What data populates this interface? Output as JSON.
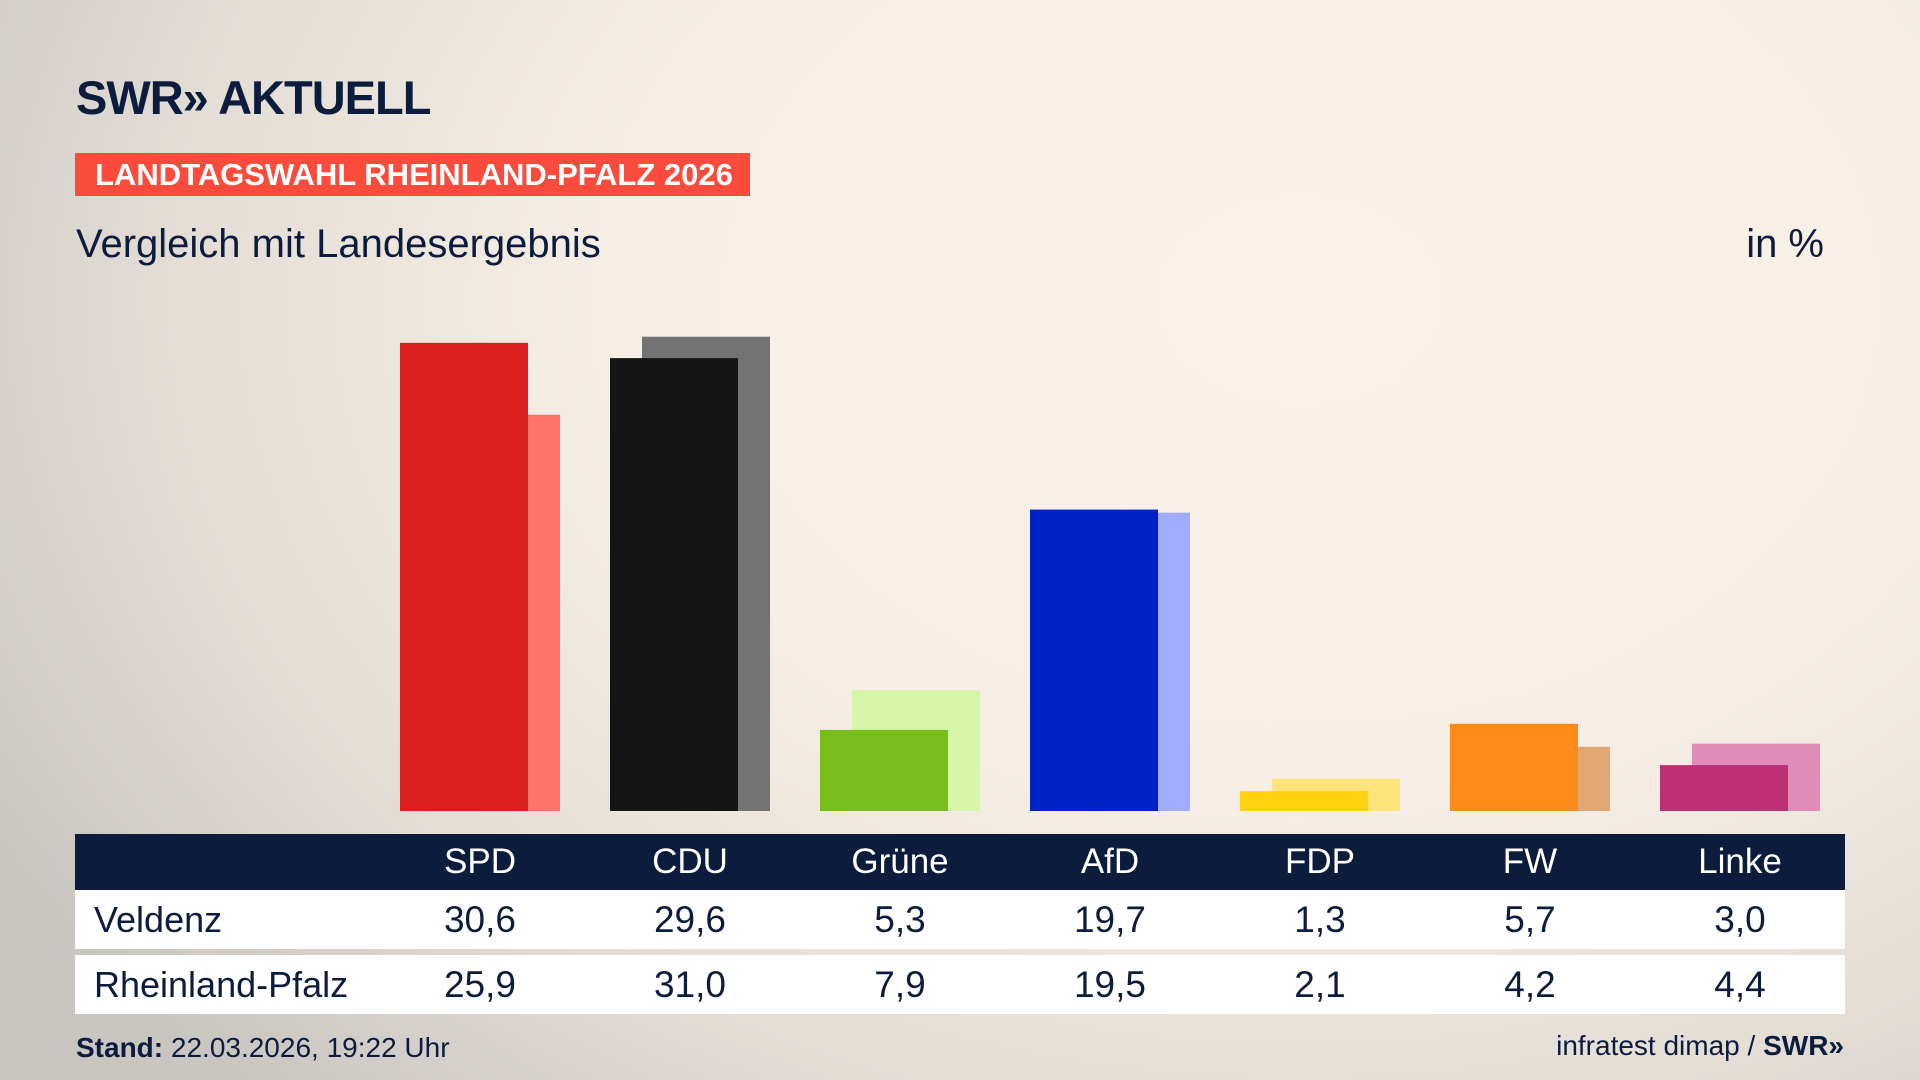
{
  "header": {
    "logo": "SWR» AKTUELL",
    "banner": "LANDTAGSWAHL RHEINLAND-PFALZ 2026",
    "subtitle": "Vergleich mit Landesergebnis",
    "unit": "in %"
  },
  "chart_data": {
    "type": "bar",
    "categories": [
      "SPD",
      "CDU",
      "Grüne",
      "AfD",
      "FDP",
      "FW",
      "Linke"
    ],
    "series": [
      {
        "name": "Veldenz",
        "values": [
          30.6,
          29.6,
          5.3,
          19.7,
          1.3,
          5.7,
          3.0
        ],
        "display": [
          "30,6",
          "29,6",
          "5,3",
          "19,7",
          "1,3",
          "5,7",
          "3,0"
        ]
      },
      {
        "name": "Rheinland-Pfalz",
        "values": [
          25.9,
          31.0,
          7.9,
          19.5,
          2.1,
          4.2,
          4.4
        ],
        "display": [
          "25,9",
          "31,0",
          "7,9",
          "19,5",
          "2,1",
          "4,2",
          "4,4"
        ]
      }
    ],
    "colors_dark": [
      "#d91f1f",
      "#141414",
      "#78be1a",
      "#0022c8",
      "#ffd10f",
      "#ff8c1a",
      "#be3075"
    ],
    "colors_light": [
      "#ff736b",
      "#737373",
      "#d5f5a8",
      "#a0acff",
      "#ffe47a",
      "#e0a673",
      "#e08cb8"
    ],
    "ylim": [
      0,
      31
    ]
  },
  "footer": {
    "stand_label": "Stand:",
    "stand_value": " 22.03.2026, 19:22 Uhr",
    "source": "infratest dimap / ",
    "source_logo": "SWR»"
  }
}
